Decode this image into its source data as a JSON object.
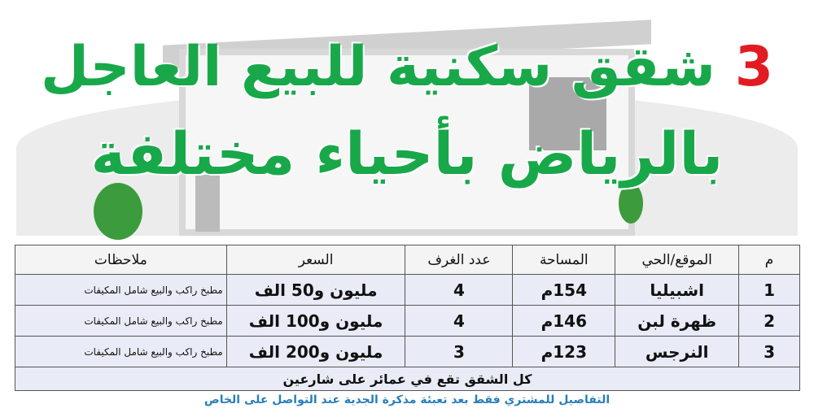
{
  "title": {
    "number": "3",
    "line1": "شقق سكنية للبيع العاجل",
    "line2": "بالرياض بأحياء مختلفة"
  },
  "colors": {
    "title_green": "#18a84a",
    "title_red": "#e21b23",
    "footer_blue": "#2a7fb8"
  },
  "table": {
    "headers": [
      "م",
      "الموقع/الحي",
      "المساحة",
      "عدد الغرف",
      "السعر",
      "ملاحظات"
    ],
    "rows": [
      [
        "1",
        "اشبيليا",
        "154م",
        "4",
        "مليون و50 الف",
        "مطبخ راكب والبيع شامل المكيفات"
      ],
      [
        "2",
        "ظهرة لبن",
        "146م",
        "4",
        "مليون و100 الف",
        "مطبخ راكب والبيع شامل المكيفات"
      ],
      [
        "3",
        "النرجس",
        "123م",
        "3",
        "مليون و200 الف",
        "مطبخ راكب والبيع شامل المكيفات"
      ]
    ],
    "summary": "كل الشقق تقع في عمائر على شارعين"
  },
  "footer": "التفاصيل للمشتري فقط بعد تعبئة مذكرة الجدية عند التواصل على الخاص"
}
